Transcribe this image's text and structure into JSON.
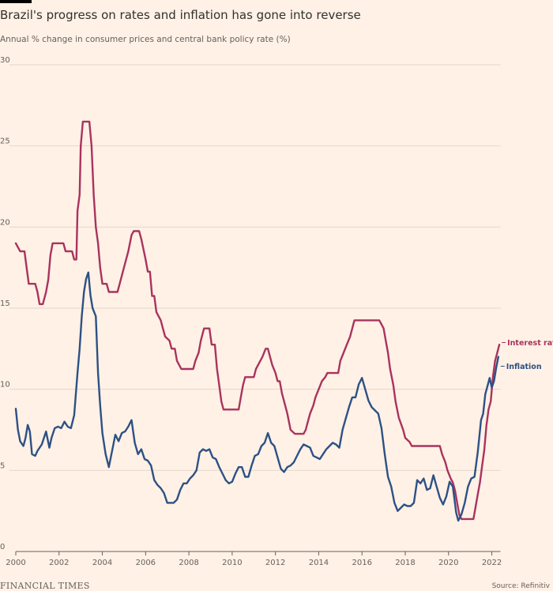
{
  "header": {
    "title": "Brazil's progress on rates and inflation has gone into reverse",
    "subtitle": "Annual % change in consumer prices and central bank policy rate (%)"
  },
  "footer": {
    "brand": "FINANCIAL TIMES",
    "source": "Source: Refinitiv"
  },
  "colors": {
    "background": "#fff1e5",
    "interest": "#a9335e",
    "inflation": "#2d5185",
    "grid": "#e2d7cd"
  },
  "chart_data": {
    "type": "line",
    "title": "Brazil's progress on rates and inflation has gone into reverse",
    "subtitle": "Annual % change in consumer prices and central bank policy rate (%)",
    "xlim": [
      2000,
      2022.4
    ],
    "ylim": [
      0,
      30
    ],
    "x_ticks": [
      2000,
      2002,
      2004,
      2006,
      2008,
      2010,
      2012,
      2014,
      2016,
      2018,
      2020,
      2022
    ],
    "x_tick_labels": [
      "2000",
      "2002",
      "2004",
      "2006",
      "2008",
      "2010",
      "2012",
      "2014",
      "2016",
      "2018",
      "2020",
      "2022"
    ],
    "y_ticks": [
      0,
      5,
      10,
      15,
      20,
      25,
      30
    ],
    "y_tick_labels": [
      "0",
      "5",
      "10",
      "15",
      "20",
      "25",
      "30"
    ],
    "grid": true,
    "legend": "direct labels at line ends (right)",
    "series": [
      {
        "name": "Interest rates",
        "points": [
          [
            2000.0,
            19.0
          ],
          [
            2000.2,
            18.5
          ],
          [
            2000.4,
            18.5
          ],
          [
            2000.5,
            17.5
          ],
          [
            2000.6,
            16.5
          ],
          [
            2000.9,
            16.5
          ],
          [
            2001.0,
            16.0
          ],
          [
            2001.1,
            15.25
          ],
          [
            2001.25,
            15.25
          ],
          [
            2001.4,
            16.0
          ],
          [
            2001.5,
            16.75
          ],
          [
            2001.6,
            18.25
          ],
          [
            2001.7,
            19.0
          ],
          [
            2002.2,
            19.0
          ],
          [
            2002.3,
            18.5
          ],
          [
            2002.6,
            18.5
          ],
          [
            2002.7,
            18.0
          ],
          [
            2002.8,
            18.0
          ],
          [
            2002.85,
            21.0
          ],
          [
            2002.95,
            22.0
          ],
          [
            2003.0,
            25.0
          ],
          [
            2003.1,
            26.5
          ],
          [
            2003.4,
            26.5
          ],
          [
            2003.5,
            25.0
          ],
          [
            2003.6,
            22.0
          ],
          [
            2003.7,
            20.0
          ],
          [
            2003.8,
            19.0
          ],
          [
            2003.9,
            17.5
          ],
          [
            2004.0,
            16.5
          ],
          [
            2004.2,
            16.5
          ],
          [
            2004.3,
            16.0
          ],
          [
            2004.7,
            16.0
          ],
          [
            2004.8,
            16.5
          ],
          [
            2005.0,
            17.5
          ],
          [
            2005.2,
            18.5
          ],
          [
            2005.35,
            19.5
          ],
          [
            2005.45,
            19.75
          ],
          [
            2005.7,
            19.75
          ],
          [
            2005.8,
            19.25
          ],
          [
            2006.0,
            18.0
          ],
          [
            2006.1,
            17.25
          ],
          [
            2006.2,
            17.25
          ],
          [
            2006.3,
            15.75
          ],
          [
            2006.4,
            15.75
          ],
          [
            2006.5,
            14.75
          ],
          [
            2006.7,
            14.25
          ],
          [
            2006.8,
            13.75
          ],
          [
            2006.9,
            13.25
          ],
          [
            2007.1,
            13.0
          ],
          [
            2007.2,
            12.5
          ],
          [
            2007.35,
            12.5
          ],
          [
            2007.45,
            11.75
          ],
          [
            2007.55,
            11.5
          ],
          [
            2007.65,
            11.25
          ],
          [
            2008.2,
            11.25
          ],
          [
            2008.3,
            11.75
          ],
          [
            2008.45,
            12.25
          ],
          [
            2008.55,
            13.0
          ],
          [
            2008.7,
            13.75
          ],
          [
            2008.95,
            13.75
          ],
          [
            2009.05,
            12.75
          ],
          [
            2009.2,
            12.75
          ],
          [
            2009.3,
            11.25
          ],
          [
            2009.4,
            10.25
          ],
          [
            2009.5,
            9.25
          ],
          [
            2009.6,
            8.75
          ],
          [
            2010.3,
            8.75
          ],
          [
            2010.4,
            9.5
          ],
          [
            2010.5,
            10.25
          ],
          [
            2010.6,
            10.75
          ],
          [
            2011.0,
            10.75
          ],
          [
            2011.1,
            11.25
          ],
          [
            2011.3,
            11.75
          ],
          [
            2011.4,
            12.0
          ],
          [
            2011.55,
            12.5
          ],
          [
            2011.65,
            12.5
          ],
          [
            2011.75,
            12.0
          ],
          [
            2011.85,
            11.5
          ],
          [
            2012.0,
            11.0
          ],
          [
            2012.1,
            10.5
          ],
          [
            2012.2,
            10.5
          ],
          [
            2012.3,
            9.75
          ],
          [
            2012.45,
            9.0
          ],
          [
            2012.55,
            8.5
          ],
          [
            2012.7,
            7.5
          ],
          [
            2012.9,
            7.25
          ],
          [
            2013.3,
            7.25
          ],
          [
            2013.4,
            7.5
          ],
          [
            2013.5,
            8.0
          ],
          [
            2013.6,
            8.5
          ],
          [
            2013.75,
            9.0
          ],
          [
            2013.85,
            9.5
          ],
          [
            2014.0,
            10.0
          ],
          [
            2014.15,
            10.5
          ],
          [
            2014.3,
            10.75
          ],
          [
            2014.4,
            11.0
          ],
          [
            2014.9,
            11.0
          ],
          [
            2015.0,
            11.75
          ],
          [
            2015.15,
            12.25
          ],
          [
            2015.3,
            12.75
          ],
          [
            2015.45,
            13.25
          ],
          [
            2015.55,
            13.75
          ],
          [
            2015.65,
            14.25
          ],
          [
            2016.8,
            14.25
          ],
          [
            2016.9,
            14.0
          ],
          [
            2017.0,
            13.75
          ],
          [
            2017.1,
            13.0
          ],
          [
            2017.2,
            12.25
          ],
          [
            2017.3,
            11.25
          ],
          [
            2017.45,
            10.25
          ],
          [
            2017.55,
            9.25
          ],
          [
            2017.7,
            8.25
          ],
          [
            2017.9,
            7.5
          ],
          [
            2018.0,
            7.0
          ],
          [
            2018.2,
            6.75
          ],
          [
            2018.3,
            6.5
          ],
          [
            2019.6,
            6.5
          ],
          [
            2019.7,
            6.0
          ],
          [
            2019.85,
            5.5
          ],
          [
            2019.95,
            5.0
          ],
          [
            2020.1,
            4.5
          ],
          [
            2020.2,
            4.25
          ],
          [
            2020.3,
            3.75
          ],
          [
            2020.4,
            3.0
          ],
          [
            2020.5,
            2.25
          ],
          [
            2020.6,
            2.0
          ],
          [
            2021.15,
            2.0
          ],
          [
            2021.25,
            2.75
          ],
          [
            2021.35,
            3.5
          ],
          [
            2021.45,
            4.25
          ],
          [
            2021.55,
            5.25
          ],
          [
            2021.65,
            6.25
          ],
          [
            2021.75,
            7.75
          ],
          [
            2021.85,
            8.75
          ],
          [
            2021.95,
            9.25
          ],
          [
            2022.05,
            10.75
          ],
          [
            2022.15,
            11.75
          ],
          [
            2022.25,
            12.25
          ],
          [
            2022.35,
            12.75
          ]
        ]
      },
      {
        "name": "Inflation",
        "points": [
          [
            2000.0,
            8.8
          ],
          [
            2000.1,
            7.5
          ],
          [
            2000.2,
            6.8
          ],
          [
            2000.35,
            6.5
          ],
          [
            2000.45,
            7.0
          ],
          [
            2000.55,
            7.8
          ],
          [
            2000.65,
            7.4
          ],
          [
            2000.75,
            6.0
          ],
          [
            2000.9,
            5.9
          ],
          [
            2001.0,
            6.2
          ],
          [
            2001.2,
            6.6
          ],
          [
            2001.4,
            7.4
          ],
          [
            2001.55,
            6.4
          ],
          [
            2001.65,
            7.0
          ],
          [
            2001.8,
            7.6
          ],
          [
            2001.95,
            7.7
          ],
          [
            2002.1,
            7.6
          ],
          [
            2002.25,
            8.0
          ],
          [
            2002.4,
            7.7
          ],
          [
            2002.55,
            7.6
          ],
          [
            2002.7,
            8.4
          ],
          [
            2002.85,
            11.0
          ],
          [
            2002.95,
            12.5
          ],
          [
            2003.05,
            14.5
          ],
          [
            2003.15,
            16.0
          ],
          [
            2003.25,
            16.8
          ],
          [
            2003.35,
            17.2
          ],
          [
            2003.45,
            15.8
          ],
          [
            2003.55,
            15.0
          ],
          [
            2003.7,
            14.5
          ],
          [
            2003.8,
            11.0
          ],
          [
            2003.9,
            9.0
          ],
          [
            2004.0,
            7.3
          ],
          [
            2004.15,
            6.0
          ],
          [
            2004.3,
            5.2
          ],
          [
            2004.45,
            6.2
          ],
          [
            2004.6,
            7.2
          ],
          [
            2004.75,
            6.8
          ],
          [
            2004.9,
            7.3
          ],
          [
            2005.05,
            7.4
          ],
          [
            2005.2,
            7.7
          ],
          [
            2005.35,
            8.1
          ],
          [
            2005.5,
            6.7
          ],
          [
            2005.65,
            6.0
          ],
          [
            2005.8,
            6.3
          ],
          [
            2005.95,
            5.7
          ],
          [
            2006.1,
            5.6
          ],
          [
            2006.25,
            5.3
          ],
          [
            2006.4,
            4.4
          ],
          [
            2006.55,
            4.1
          ],
          [
            2006.7,
            3.9
          ],
          [
            2006.85,
            3.6
          ],
          [
            2007.0,
            3.0
          ],
          [
            2007.15,
            3.0
          ],
          [
            2007.3,
            3.0
          ],
          [
            2007.45,
            3.2
          ],
          [
            2007.6,
            3.8
          ],
          [
            2007.75,
            4.2
          ],
          [
            2007.9,
            4.2
          ],
          [
            2008.05,
            4.5
          ],
          [
            2008.2,
            4.7
          ],
          [
            2008.35,
            5.0
          ],
          [
            2008.5,
            6.1
          ],
          [
            2008.65,
            6.3
          ],
          [
            2008.8,
            6.2
          ],
          [
            2008.95,
            6.3
          ],
          [
            2009.1,
            5.8
          ],
          [
            2009.25,
            5.7
          ],
          [
            2009.4,
            5.2
          ],
          [
            2009.55,
            4.8
          ],
          [
            2009.7,
            4.4
          ],
          [
            2009.85,
            4.2
          ],
          [
            2010.0,
            4.3
          ],
          [
            2010.15,
            4.8
          ],
          [
            2010.3,
            5.2
          ],
          [
            2010.45,
            5.2
          ],
          [
            2010.6,
            4.6
          ],
          [
            2010.75,
            4.6
          ],
          [
            2010.9,
            5.3
          ],
          [
            2011.05,
            5.9
          ],
          [
            2011.2,
            6.0
          ],
          [
            2011.35,
            6.5
          ],
          [
            2011.5,
            6.7
          ],
          [
            2011.65,
            7.3
          ],
          [
            2011.8,
            6.7
          ],
          [
            2011.95,
            6.5
          ],
          [
            2012.1,
            5.8
          ],
          [
            2012.25,
            5.1
          ],
          [
            2012.4,
            4.9
          ],
          [
            2012.55,
            5.2
          ],
          [
            2012.7,
            5.3
          ],
          [
            2012.85,
            5.5
          ],
          [
            2013.0,
            5.9
          ],
          [
            2013.15,
            6.3
          ],
          [
            2013.3,
            6.6
          ],
          [
            2013.45,
            6.5
          ],
          [
            2013.6,
            6.4
          ],
          [
            2013.75,
            5.9
          ],
          [
            2013.9,
            5.8
          ],
          [
            2014.05,
            5.7
          ],
          [
            2014.2,
            6.0
          ],
          [
            2014.35,
            6.3
          ],
          [
            2014.5,
            6.5
          ],
          [
            2014.65,
            6.7
          ],
          [
            2014.8,
            6.6
          ],
          [
            2014.95,
            6.4
          ],
          [
            2015.1,
            7.5
          ],
          [
            2015.25,
            8.2
          ],
          [
            2015.4,
            8.9
          ],
          [
            2015.55,
            9.5
          ],
          [
            2015.7,
            9.5
          ],
          [
            2015.85,
            10.3
          ],
          [
            2016.0,
            10.7
          ],
          [
            2016.15,
            10.0
          ],
          [
            2016.3,
            9.3
          ],
          [
            2016.45,
            8.9
          ],
          [
            2016.6,
            8.7
          ],
          [
            2016.75,
            8.5
          ],
          [
            2016.9,
            7.6
          ],
          [
            2017.05,
            6.0
          ],
          [
            2017.2,
            4.6
          ],
          [
            2017.35,
            4.0
          ],
          [
            2017.5,
            3.0
          ],
          [
            2017.65,
            2.5
          ],
          [
            2017.8,
            2.7
          ],
          [
            2017.95,
            2.9
          ],
          [
            2018.1,
            2.8
          ],
          [
            2018.25,
            2.8
          ],
          [
            2018.4,
            3.0
          ],
          [
            2018.55,
            4.4
          ],
          [
            2018.7,
            4.2
          ],
          [
            2018.85,
            4.5
          ],
          [
            2019.0,
            3.8
          ],
          [
            2019.15,
            3.9
          ],
          [
            2019.3,
            4.7
          ],
          [
            2019.45,
            4.0
          ],
          [
            2019.6,
            3.3
          ],
          [
            2019.75,
            2.9
          ],
          [
            2019.9,
            3.4
          ],
          [
            2020.05,
            4.3
          ],
          [
            2020.2,
            4.0
          ],
          [
            2020.35,
            2.4
          ],
          [
            2020.45,
            1.9
          ],
          [
            2020.6,
            2.3
          ],
          [
            2020.75,
            3.0
          ],
          [
            2020.9,
            4.0
          ],
          [
            2021.05,
            4.5
          ],
          [
            2021.2,
            4.6
          ],
          [
            2021.35,
            6.1
          ],
          [
            2021.5,
            8.1
          ],
          [
            2021.6,
            8.5
          ],
          [
            2021.7,
            9.7
          ],
          [
            2021.8,
            10.2
          ],
          [
            2021.9,
            10.7
          ],
          [
            2022.0,
            10.1
          ],
          [
            2022.1,
            10.5
          ],
          [
            2022.2,
            11.3
          ],
          [
            2022.3,
            12.0
          ]
        ]
      }
    ]
  }
}
